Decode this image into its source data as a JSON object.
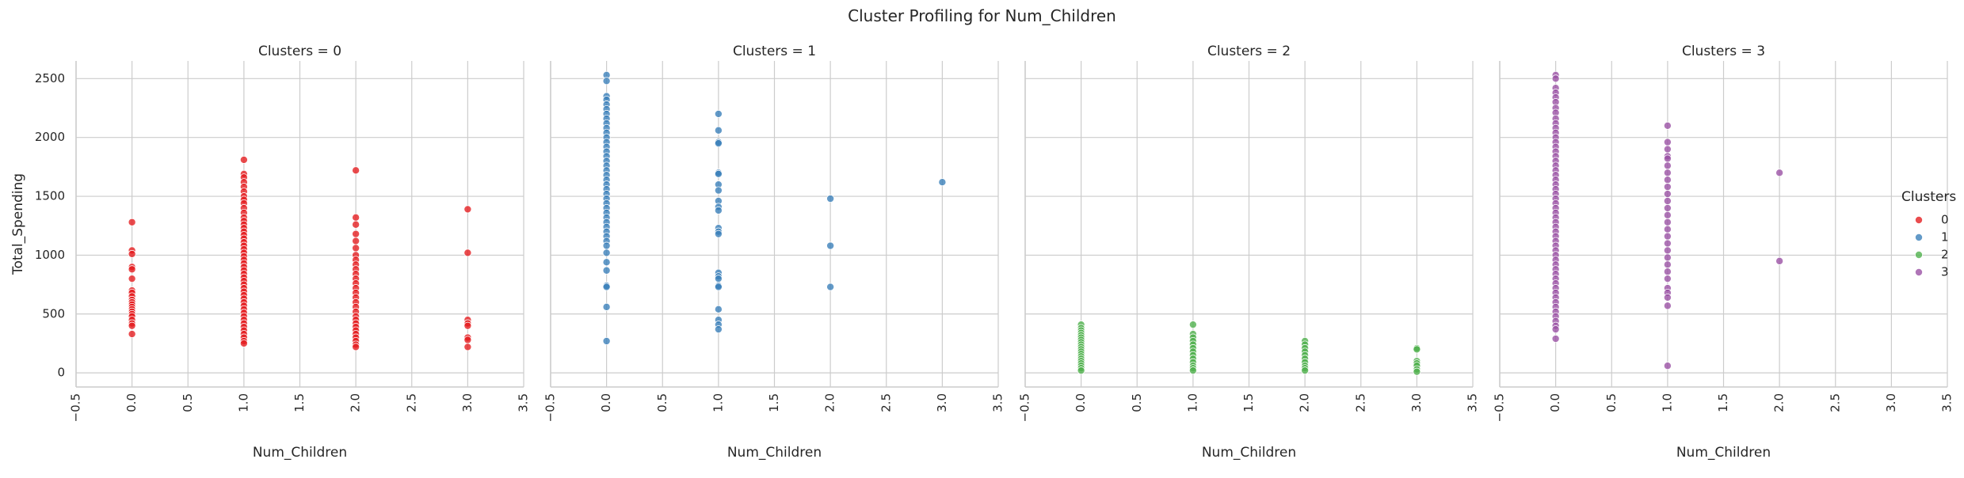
{
  "chart_data": {
    "type": "scatter",
    "title": "Cluster Profiling for Num_Children",
    "xlabel": "Num_Children",
    "ylabel": "Total_Spending",
    "xlim": [
      -0.5,
      3.5
    ],
    "ylim": [
      -120,
      2650
    ],
    "xticks": [
      "−0.5",
      "0.0",
      "0.5",
      "1.0",
      "1.5",
      "2.0",
      "2.5",
      "3.0",
      "3.5"
    ],
    "xtick_values": [
      -0.5,
      0.0,
      0.5,
      1.0,
      1.5,
      2.0,
      2.5,
      3.0,
      3.5
    ],
    "yticks": [
      "0",
      "500",
      "1000",
      "1500",
      "2000",
      "2500"
    ],
    "ytick_values": [
      0,
      500,
      1000,
      1500,
      2000,
      2500
    ],
    "grid": true,
    "legend": {
      "title": "Clusters",
      "placement": "right",
      "entries": [
        "0",
        "1",
        "2",
        "3"
      ]
    },
    "panels": [
      {
        "title": "Clusters = 0",
        "color": "#e41a1c",
        "points": [
          [
            0,
            1280
          ],
          [
            0,
            1040
          ],
          [
            0,
            1010
          ],
          [
            0,
            900
          ],
          [
            0,
            880
          ],
          [
            0,
            800
          ],
          [
            0,
            700
          ],
          [
            0,
            680
          ],
          [
            0,
            650
          ],
          [
            0,
            620
          ],
          [
            0,
            600
          ],
          [
            0,
            580
          ],
          [
            0,
            560
          ],
          [
            0,
            540
          ],
          [
            0,
            520
          ],
          [
            0,
            500
          ],
          [
            0,
            480
          ],
          [
            0,
            450
          ],
          [
            0,
            420
          ],
          [
            0,
            400
          ],
          [
            0,
            330
          ],
          [
            1,
            1810
          ],
          [
            1,
            1690
          ],
          [
            1,
            1660
          ],
          [
            1,
            1620
          ],
          [
            1,
            1580
          ],
          [
            1,
            1540
          ],
          [
            1,
            1500
          ],
          [
            1,
            1470
          ],
          [
            1,
            1440
          ],
          [
            1,
            1400
          ],
          [
            1,
            1360
          ],
          [
            1,
            1320
          ],
          [
            1,
            1290
          ],
          [
            1,
            1260
          ],
          [
            1,
            1230
          ],
          [
            1,
            1200
          ],
          [
            1,
            1170
          ],
          [
            1,
            1140
          ],
          [
            1,
            1110
          ],
          [
            1,
            1080
          ],
          [
            1,
            1050
          ],
          [
            1,
            1020
          ],
          [
            1,
            990
          ],
          [
            1,
            960
          ],
          [
            1,
            930
          ],
          [
            1,
            900
          ],
          [
            1,
            870
          ],
          [
            1,
            840
          ],
          [
            1,
            810
          ],
          [
            1,
            780
          ],
          [
            1,
            750
          ],
          [
            1,
            720
          ],
          [
            1,
            690
          ],
          [
            1,
            660
          ],
          [
            1,
            630
          ],
          [
            1,
            600
          ],
          [
            1,
            570
          ],
          [
            1,
            540
          ],
          [
            1,
            510
          ],
          [
            1,
            480
          ],
          [
            1,
            450
          ],
          [
            1,
            420
          ],
          [
            1,
            390
          ],
          [
            1,
            360
          ],
          [
            1,
            330
          ],
          [
            1,
            300
          ],
          [
            1,
            270
          ],
          [
            1,
            250
          ],
          [
            2,
            1720
          ],
          [
            2,
            1320
          ],
          [
            2,
            1260
          ],
          [
            2,
            1180
          ],
          [
            2,
            1120
          ],
          [
            2,
            1060
          ],
          [
            2,
            1000
          ],
          [
            2,
            960
          ],
          [
            2,
            920
          ],
          [
            2,
            880
          ],
          [
            2,
            840
          ],
          [
            2,
            800
          ],
          [
            2,
            760
          ],
          [
            2,
            720
          ],
          [
            2,
            680
          ],
          [
            2,
            640
          ],
          [
            2,
            600
          ],
          [
            2,
            560
          ],
          [
            2,
            520
          ],
          [
            2,
            480
          ],
          [
            2,
            450
          ],
          [
            2,
            420
          ],
          [
            2,
            390
          ],
          [
            2,
            360
          ],
          [
            2,
            330
          ],
          [
            2,
            300
          ],
          [
            2,
            270
          ],
          [
            2,
            240
          ],
          [
            2,
            220
          ],
          [
            3,
            1390
          ],
          [
            3,
            1020
          ],
          [
            3,
            450
          ],
          [
            3,
            420
          ],
          [
            3,
            400
          ],
          [
            3,
            300
          ],
          [
            3,
            280
          ],
          [
            3,
            220
          ]
        ]
      },
      {
        "title": "Clusters = 1",
        "color": "#377eb8",
        "points": [
          [
            0,
            2530
          ],
          [
            0,
            2480
          ],
          [
            0,
            2350
          ],
          [
            0,
            2320
          ],
          [
            0,
            2280
          ],
          [
            0,
            2240
          ],
          [
            0,
            2200
          ],
          [
            0,
            2160
          ],
          [
            0,
            2120
          ],
          [
            0,
            2080
          ],
          [
            0,
            2040
          ],
          [
            0,
            2000
          ],
          [
            0,
            1960
          ],
          [
            0,
            1920
          ],
          [
            0,
            1880
          ],
          [
            0,
            1840
          ],
          [
            0,
            1800
          ],
          [
            0,
            1760
          ],
          [
            0,
            1720
          ],
          [
            0,
            1680
          ],
          [
            0,
            1640
          ],
          [
            0,
            1600
          ],
          [
            0,
            1560
          ],
          [
            0,
            1520
          ],
          [
            0,
            1480
          ],
          [
            0,
            1440
          ],
          [
            0,
            1400
          ],
          [
            0,
            1360
          ],
          [
            0,
            1320
          ],
          [
            0,
            1280
          ],
          [
            0,
            1240
          ],
          [
            0,
            1200
          ],
          [
            0,
            1160
          ],
          [
            0,
            1120
          ],
          [
            0,
            1080
          ],
          [
            0,
            1020
          ],
          [
            0,
            940
          ],
          [
            0,
            870
          ],
          [
            0,
            740
          ],
          [
            0,
            730
          ],
          [
            0,
            560
          ],
          [
            0,
            270
          ],
          [
            1,
            2200
          ],
          [
            1,
            2060
          ],
          [
            1,
            1960
          ],
          [
            1,
            1950
          ],
          [
            1,
            1700
          ],
          [
            1,
            1690
          ],
          [
            1,
            1600
          ],
          [
            1,
            1550
          ],
          [
            1,
            1460
          ],
          [
            1,
            1410
          ],
          [
            1,
            1380
          ],
          [
            1,
            1230
          ],
          [
            1,
            1200
          ],
          [
            1,
            1180
          ],
          [
            1,
            850
          ],
          [
            1,
            820
          ],
          [
            1,
            800
          ],
          [
            1,
            740
          ],
          [
            1,
            730
          ],
          [
            1,
            540
          ],
          [
            1,
            450
          ],
          [
            1,
            410
          ],
          [
            1,
            370
          ],
          [
            2,
            1480
          ],
          [
            2,
            1080
          ],
          [
            2,
            730
          ],
          [
            3,
            1620
          ]
        ]
      },
      {
        "title": "Clusters = 2",
        "color": "#4daf4a",
        "points": [
          [
            0,
            410
          ],
          [
            0,
            380
          ],
          [
            0,
            360
          ],
          [
            0,
            340
          ],
          [
            0,
            320
          ],
          [
            0,
            300
          ],
          [
            0,
            280
          ],
          [
            0,
            260
          ],
          [
            0,
            240
          ],
          [
            0,
            220
          ],
          [
            0,
            200
          ],
          [
            0,
            180
          ],
          [
            0,
            160
          ],
          [
            0,
            140
          ],
          [
            0,
            120
          ],
          [
            0,
            100
          ],
          [
            0,
            80
          ],
          [
            0,
            60
          ],
          [
            0,
            40
          ],
          [
            0,
            20
          ],
          [
            1,
            410
          ],
          [
            1,
            330
          ],
          [
            1,
            300
          ],
          [
            1,
            270
          ],
          [
            1,
            240
          ],
          [
            1,
            210
          ],
          [
            1,
            180
          ],
          [
            1,
            150
          ],
          [
            1,
            120
          ],
          [
            1,
            90
          ],
          [
            1,
            60
          ],
          [
            1,
            40
          ],
          [
            1,
            20
          ],
          [
            2,
            270
          ],
          [
            2,
            240
          ],
          [
            2,
            210
          ],
          [
            2,
            180
          ],
          [
            2,
            150
          ],
          [
            2,
            120
          ],
          [
            2,
            90
          ],
          [
            2,
            60
          ],
          [
            2,
            40
          ],
          [
            2,
            20
          ],
          [
            3,
            210
          ],
          [
            3,
            200
          ],
          [
            3,
            100
          ],
          [
            3,
            80
          ],
          [
            3,
            60
          ],
          [
            3,
            30
          ],
          [
            3,
            10
          ]
        ]
      },
      {
        "title": "Clusters = 3",
        "color": "#984ea3",
        "points": [
          [
            0,
            2530
          ],
          [
            0,
            2500
          ],
          [
            0,
            2420
          ],
          [
            0,
            2380
          ],
          [
            0,
            2340
          ],
          [
            0,
            2300
          ],
          [
            0,
            2250
          ],
          [
            0,
            2210
          ],
          [
            0,
            2160
          ],
          [
            0,
            2120
          ],
          [
            0,
            2080
          ],
          [
            0,
            2040
          ],
          [
            0,
            2000
          ],
          [
            0,
            1960
          ],
          [
            0,
            1920
          ],
          [
            0,
            1880
          ],
          [
            0,
            1840
          ],
          [
            0,
            1800
          ],
          [
            0,
            1760
          ],
          [
            0,
            1720
          ],
          [
            0,
            1680
          ],
          [
            0,
            1640
          ],
          [
            0,
            1600
          ],
          [
            0,
            1560
          ],
          [
            0,
            1520
          ],
          [
            0,
            1480
          ],
          [
            0,
            1440
          ],
          [
            0,
            1400
          ],
          [
            0,
            1360
          ],
          [
            0,
            1320
          ],
          [
            0,
            1280
          ],
          [
            0,
            1240
          ],
          [
            0,
            1200
          ],
          [
            0,
            1160
          ],
          [
            0,
            1120
          ],
          [
            0,
            1080
          ],
          [
            0,
            1040
          ],
          [
            0,
            1000
          ],
          [
            0,
            960
          ],
          [
            0,
            920
          ],
          [
            0,
            880
          ],
          [
            0,
            840
          ],
          [
            0,
            800
          ],
          [
            0,
            760
          ],
          [
            0,
            720
          ],
          [
            0,
            680
          ],
          [
            0,
            640
          ],
          [
            0,
            600
          ],
          [
            0,
            560
          ],
          [
            0,
            520
          ],
          [
            0,
            480
          ],
          [
            0,
            440
          ],
          [
            0,
            400
          ],
          [
            0,
            370
          ],
          [
            0,
            290
          ],
          [
            1,
            2100
          ],
          [
            1,
            1960
          ],
          [
            1,
            1900
          ],
          [
            1,
            1840
          ],
          [
            1,
            1820
          ],
          [
            1,
            1760
          ],
          [
            1,
            1700
          ],
          [
            1,
            1640
          ],
          [
            1,
            1580
          ],
          [
            1,
            1520
          ],
          [
            1,
            1460
          ],
          [
            1,
            1400
          ],
          [
            1,
            1340
          ],
          [
            1,
            1280
          ],
          [
            1,
            1220
          ],
          [
            1,
            1160
          ],
          [
            1,
            1100
          ],
          [
            1,
            1040
          ],
          [
            1,
            980
          ],
          [
            1,
            920
          ],
          [
            1,
            860
          ],
          [
            1,
            800
          ],
          [
            1,
            720
          ],
          [
            1,
            680
          ],
          [
            1,
            640
          ],
          [
            1,
            570
          ],
          [
            1,
            60
          ],
          [
            2,
            1700
          ],
          [
            2,
            950
          ]
        ]
      }
    ]
  }
}
